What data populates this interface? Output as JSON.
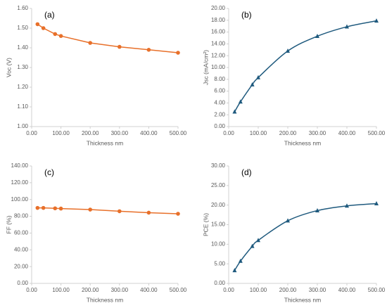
{
  "chart_data": [
    {
      "type": "line",
      "annotation": "(a)",
      "x_label": "Thickness nm",
      "y_label": "Voc (V)",
      "color": "#e8702a",
      "marker": "circle",
      "smooth": false,
      "x": [
        20,
        40,
        80,
        100,
        200,
        300,
        400,
        500
      ],
      "values": [
        1.52,
        1.5,
        1.47,
        1.46,
        1.425,
        1.405,
        1.39,
        1.375
      ],
      "xlim": [
        0,
        500
      ],
      "xticks": [
        {
          "value": 0,
          "label": "0.00"
        },
        {
          "value": 100,
          "label": "100.00"
        },
        {
          "value": 200,
          "label": "200.00"
        },
        {
          "value": 300,
          "label": "300.00"
        },
        {
          "value": 400,
          "label": "400.00"
        },
        {
          "value": 500,
          "label": "500.00"
        }
      ],
      "ylim": [
        1.0,
        1.6
      ],
      "yticks": [
        {
          "value": 1.0,
          "label": "1.00"
        },
        {
          "value": 1.1,
          "label": "1.10"
        },
        {
          "value": 1.2,
          "label": "1.20"
        },
        {
          "value": 1.3,
          "label": "1.30"
        },
        {
          "value": 1.4,
          "label": "1.40"
        },
        {
          "value": 1.5,
          "label": "1.50"
        },
        {
          "value": 1.6,
          "label": "1.60"
        }
      ]
    },
    {
      "type": "line",
      "annotation": "(b)",
      "x_label": "Thickness nm",
      "y_label": "Jsc (mA/cm²)",
      "color": "#1f5a7e",
      "marker": "triangle",
      "smooth": true,
      "x": [
        20,
        40,
        80,
        100,
        200,
        300,
        400,
        500
      ],
      "values": [
        2.5,
        4.2,
        7.1,
        8.3,
        12.8,
        15.3,
        16.9,
        17.9
      ],
      "xlim": [
        0,
        500
      ],
      "xticks": [
        {
          "value": 0,
          "label": "0.00"
        },
        {
          "value": 100,
          "label": "100.00"
        },
        {
          "value": 200,
          "label": "200.00"
        },
        {
          "value": 300,
          "label": "300.00"
        },
        {
          "value": 400,
          "label": "400.00"
        },
        {
          "value": 500,
          "label": "500.00"
        }
      ],
      "ylim": [
        0,
        20
      ],
      "yticks": [
        {
          "value": 0,
          "label": "0.00"
        },
        {
          "value": 2,
          "label": "2.00"
        },
        {
          "value": 4,
          "label": "4.00"
        },
        {
          "value": 6,
          "label": "6.00"
        },
        {
          "value": 8,
          "label": "8.00"
        },
        {
          "value": 10,
          "label": "10.00"
        },
        {
          "value": 12,
          "label": "12.00"
        },
        {
          "value": 14,
          "label": "14.00"
        },
        {
          "value": 16,
          "label": "16.00"
        },
        {
          "value": 18,
          "label": "18.00"
        },
        {
          "value": 20,
          "label": "20.00"
        }
      ]
    },
    {
      "type": "line",
      "annotation": "(c)",
      "x_label": "Thickness nm",
      "y_label": "FF (%)",
      "color": "#e8702a",
      "marker": "circle",
      "smooth": false,
      "x": [
        20,
        40,
        80,
        100,
        200,
        300,
        400,
        500
      ],
      "values": [
        90,
        90,
        89.5,
        89.2,
        88,
        86,
        84.3,
        83
      ],
      "xlim": [
        0,
        500
      ],
      "xticks": [
        {
          "value": 0,
          "label": "0.00"
        },
        {
          "value": 100,
          "label": "100.00"
        },
        {
          "value": 200,
          "label": "200.00"
        },
        {
          "value": 300,
          "label": "300.00"
        },
        {
          "value": 400,
          "label": "400.00"
        },
        {
          "value": 500,
          "label": "500.00"
        }
      ],
      "ylim": [
        0,
        140
      ],
      "yticks": [
        {
          "value": 0,
          "label": "0.00"
        },
        {
          "value": 20,
          "label": "20.00"
        },
        {
          "value": 40,
          "label": "40.00"
        },
        {
          "value": 60,
          "label": "60.00"
        },
        {
          "value": 80,
          "label": "80.00"
        },
        {
          "value": 100,
          "label": "100.00"
        },
        {
          "value": 120,
          "label": "120.00"
        },
        {
          "value": 140,
          "label": "140.00"
        }
      ]
    },
    {
      "type": "line",
      "annotation": "(d)",
      "x_label": "Thickness nm",
      "y_label": "PCE (%)",
      "color": "#1f5a7e",
      "marker": "triangle",
      "smooth": true,
      "x": [
        20,
        40,
        80,
        100,
        200,
        300,
        400,
        500
      ],
      "values": [
        3.3,
        5.7,
        9.5,
        11,
        16,
        18.6,
        19.8,
        20.4
      ],
      "xlim": [
        0,
        500
      ],
      "xticks": [
        {
          "value": 0,
          "label": "0.00"
        },
        {
          "value": 100,
          "label": "100.00"
        },
        {
          "value": 200,
          "label": "200.00"
        },
        {
          "value": 300,
          "label": "300.00"
        },
        {
          "value": 400,
          "label": "400.00"
        },
        {
          "value": 500,
          "label": "500.00"
        }
      ],
      "ylim": [
        0,
        30
      ],
      "yticks": [
        {
          "value": 0,
          "label": "0.00"
        },
        {
          "value": 5,
          "label": "5.00"
        },
        {
          "value": 10,
          "label": "10.00"
        },
        {
          "value": 15,
          "label": "15.00"
        },
        {
          "value": 20,
          "label": "20.00"
        },
        {
          "value": 25,
          "label": "25.00"
        },
        {
          "value": 30,
          "label": "30.00"
        }
      ]
    }
  ]
}
